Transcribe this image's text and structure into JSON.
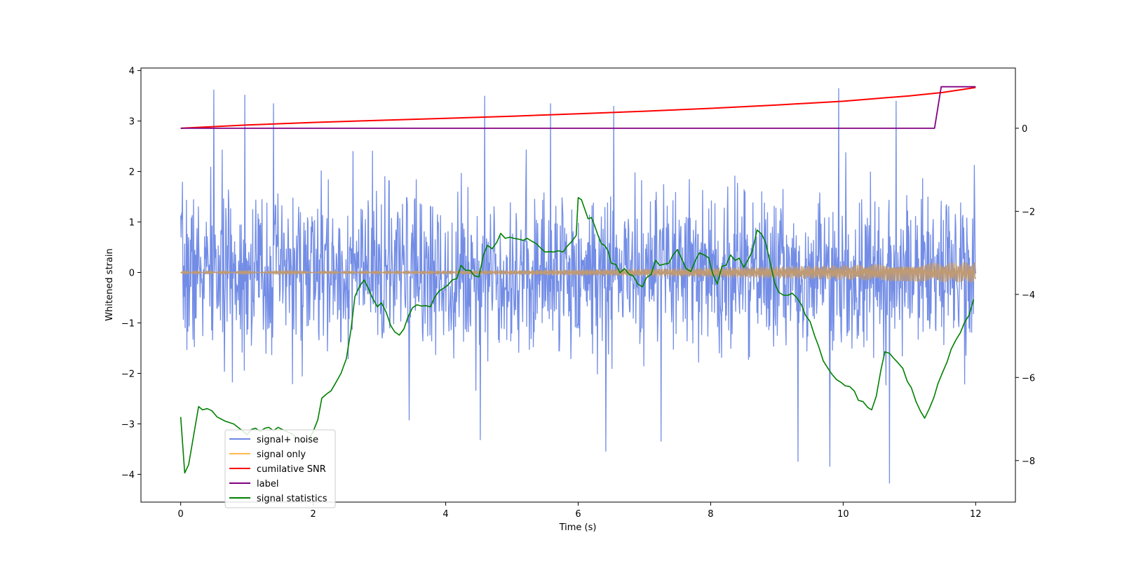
{
  "chart_data": {
    "type": "line",
    "title": "",
    "xlabel": "Time (s)",
    "ylabel": "Whitened strain",
    "xlim": [
      -0.6,
      12.6
    ],
    "ylim": [
      -4.55,
      4.05
    ],
    "y2lim": [
      -9.0,
      1.45
    ],
    "grid": false,
    "legend_position": "lower-left",
    "x_ticks": [
      0,
      2,
      4,
      6,
      8,
      10,
      12
    ],
    "y_ticks": [
      -4,
      -3,
      -2,
      -1,
      0,
      1,
      2,
      3,
      4
    ],
    "y2_ticks": [
      -8,
      -6,
      -4,
      -2,
      0
    ],
    "colors": {
      "signal_noise": "#6b87e5",
      "signal_only": "#ffb84d",
      "signal_envelope_overlap": "#c09a72",
      "snr": "#ff0000",
      "label": "#800080",
      "statistics": "#008000"
    },
    "legend": [
      "signal+ noise",
      "signal only",
      "cumilative SNR",
      "label",
      "signal statistics"
    ],
    "series": [
      {
        "name": "signal+ noise",
        "axis": "left",
        "duration": 12,
        "description_values": "whitened noise, ~N(0,0.8), range approx -4.2 to 3.65",
        "samples": 1800,
        "sigma": 0.78,
        "seed": 7,
        "spikes": [
          {
            "t": 0.5,
            "v": 3.62
          },
          {
            "t": 0.97,
            "v": 3.52
          },
          {
            "t": 1.4,
            "v": 3.35
          },
          {
            "t": 4.59,
            "v": 3.5
          },
          {
            "t": 5.58,
            "v": 3.35
          },
          {
            "t": 6.54,
            "v": 3.3
          },
          {
            "t": 9.93,
            "v": 3.65
          },
          {
            "t": 10.8,
            "v": 3.4
          },
          {
            "t": 10.7,
            "v": -4.18
          },
          {
            "t": 9.8,
            "v": -3.85
          },
          {
            "t": 9.32,
            "v": -3.75
          },
          {
            "t": 7.25,
            "v": -3.35
          },
          {
            "t": 4.52,
            "v": -3.32
          },
          {
            "t": 6.42,
            "v": -3.55
          },
          {
            "t": 3.45,
            "v": -2.93
          }
        ]
      },
      {
        "name": "signal only",
        "axis": "left",
        "description_values": "chirp with amplitude growing from ~0.02 at t=0 to ~0.21 at t=12",
        "amplitude_start": 0.02,
        "amplitude_end": 0.21,
        "t_end": 12
      },
      {
        "name": "cumilative SNR",
        "axis": "right",
        "x": [
          0,
          1,
          2,
          3,
          4,
          5,
          6,
          7,
          8,
          9,
          10,
          11,
          11.5,
          12
        ],
        "values": [
          0.0,
          0.08,
          0.14,
          0.19,
          0.24,
          0.29,
          0.35,
          0.41,
          0.48,
          0.56,
          0.65,
          0.78,
          0.86,
          0.98
        ]
      },
      {
        "name": "label",
        "axis": "right",
        "x": [
          0,
          11.38,
          11.48,
          12
        ],
        "values": [
          0,
          0,
          1,
          1
        ]
      },
      {
        "name": "signal statistics",
        "axis": "right",
        "x": [
          0,
          0.06,
          0.12,
          0.2,
          0.27,
          0.33,
          0.4,
          0.47,
          0.55,
          0.67,
          0.8,
          0.93,
          1.0,
          1.07,
          1.13,
          1.2,
          1.27,
          1.33,
          1.4,
          1.47,
          1.53,
          1.6,
          1.67,
          1.73,
          1.8,
          1.87,
          1.93,
          2.0,
          2.07,
          2.13,
          2.2,
          2.27,
          2.35,
          2.42,
          2.5,
          2.57,
          2.63,
          2.7,
          2.77,
          2.83,
          2.9,
          2.97,
          3.03,
          3.1,
          3.17,
          3.23,
          3.3,
          3.37,
          3.43,
          3.5,
          3.57,
          3.63,
          3.7,
          3.77,
          3.83,
          3.9,
          3.97,
          4.03,
          4.1,
          4.17,
          4.23,
          4.3,
          4.37,
          4.43,
          4.5,
          4.57,
          4.63,
          4.7,
          4.77,
          4.83,
          4.9,
          4.97,
          5.03,
          5.1,
          5.17,
          5.23,
          5.3,
          5.37,
          5.43,
          5.5,
          5.57,
          5.63,
          5.7,
          5.77,
          5.83,
          5.9,
          5.97,
          6.0,
          6.05,
          6.1,
          6.15,
          6.2,
          6.25,
          6.3,
          6.35,
          6.4,
          6.45,
          6.5,
          6.57,
          6.63,
          6.7,
          6.77,
          6.83,
          6.9,
          6.97,
          7.03,
          7.1,
          7.17,
          7.23,
          7.3,
          7.37,
          7.43,
          7.5,
          7.57,
          7.63,
          7.7,
          7.77,
          7.83,
          7.9,
          7.97,
          8.03,
          8.1,
          8.17,
          8.23,
          8.3,
          8.37,
          8.43,
          8.5,
          8.57,
          8.63,
          8.7,
          8.77,
          8.83,
          8.9,
          8.97,
          9.03,
          9.1,
          9.17,
          9.23,
          9.3,
          9.37,
          9.43,
          9.5,
          9.57,
          9.63,
          9.7,
          9.77,
          9.83,
          9.9,
          9.97,
          10.03,
          10.1,
          10.17,
          10.23,
          10.3,
          10.37,
          10.43,
          10.5,
          10.57,
          10.63,
          10.7,
          10.77,
          10.83,
          10.9,
          10.97,
          11.03,
          11.1,
          11.17,
          11.23,
          11.3,
          11.37,
          11.43,
          11.5,
          11.57,
          11.63,
          11.7,
          11.77,
          11.83,
          11.9,
          11.97
        ],
        "values": [
          -6.95,
          -8.3,
          -8.1,
          -7.35,
          -6.7,
          -6.78,
          -6.75,
          -6.8,
          -6.95,
          -7.05,
          -7.12,
          -7.28,
          -7.38,
          -7.25,
          -7.22,
          -7.3,
          -7.22,
          -7.2,
          -7.28,
          -7.2,
          -7.25,
          -7.3,
          -7.35,
          -7.42,
          -7.5,
          -7.55,
          -7.5,
          -7.3,
          -7.02,
          -6.5,
          -6.4,
          -6.32,
          -6.1,
          -5.9,
          -5.55,
          -4.85,
          -4.05,
          -3.8,
          -3.65,
          -3.85,
          -4.1,
          -4.3,
          -4.2,
          -4.42,
          -4.75,
          -4.9,
          -4.98,
          -4.83,
          -4.55,
          -4.32,
          -4.25,
          -4.28,
          -4.27,
          -4.3,
          -4.08,
          -3.92,
          -3.85,
          -3.78,
          -3.65,
          -3.62,
          -3.3,
          -3.42,
          -3.42,
          -3.55,
          -3.58,
          -3.05,
          -2.82,
          -2.9,
          -2.75,
          -2.53,
          -2.65,
          -2.62,
          -2.65,
          -2.67,
          -2.7,
          -2.65,
          -2.72,
          -2.78,
          -2.88,
          -2.98,
          -2.97,
          -2.98,
          -2.95,
          -2.98,
          -2.85,
          -2.73,
          -2.58,
          -1.67,
          -1.72,
          -1.95,
          -2.18,
          -2.15,
          -2.35,
          -2.58,
          -2.78,
          -2.82,
          -2.95,
          -3.25,
          -3.28,
          -3.48,
          -3.38,
          -3.52,
          -3.55,
          -3.75,
          -3.82,
          -3.6,
          -3.52,
          -3.18,
          -3.3,
          -3.27,
          -3.25,
          -3.05,
          -2.92,
          -3.17,
          -3.38,
          -3.45,
          -3.18,
          -3.0,
          -3.05,
          -3.12,
          -3.5,
          -3.75,
          -3.32,
          -3.3,
          -3.05,
          -3.18,
          -3.13,
          -3.35,
          -3.15,
          -2.95,
          -2.45,
          -2.55,
          -2.75,
          -3.25,
          -3.75,
          -3.95,
          -4.02,
          -4.02,
          -3.97,
          -4.08,
          -4.25,
          -4.5,
          -4.65,
          -5.0,
          -5.25,
          -5.6,
          -5.78,
          -5.92,
          -6.05,
          -6.12,
          -6.2,
          -6.22,
          -6.33,
          -6.55,
          -6.58,
          -6.72,
          -6.78,
          -6.45,
          -5.82,
          -5.38,
          -5.42,
          -5.55,
          -5.65,
          -5.78,
          -6.1,
          -6.25,
          -6.58,
          -6.82,
          -6.98,
          -6.75,
          -6.48,
          -6.15,
          -5.88,
          -5.62,
          -5.32,
          -5.1,
          -4.92,
          -4.68,
          -4.5,
          -4.12
        ],
        "ylim_note": "right axis"
      }
    ]
  }
}
